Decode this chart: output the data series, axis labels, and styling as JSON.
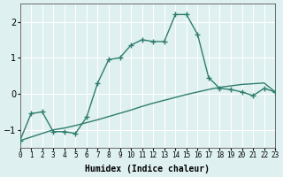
{
  "xlabel": "Humidex (Indice chaleur)",
  "ylabel": "",
  "background_color": "#dff0f0",
  "grid_color": "#ffffff",
  "line_color": "#2e7d6e",
  "xlim": [
    0,
    23
  ],
  "ylim": [
    -1.5,
    2.5
  ],
  "yticks": [
    -1,
    0,
    1,
    2
  ],
  "xtick_labels": [
    "0",
    "1",
    "2",
    "3",
    "4",
    "5",
    "6",
    "7",
    "8",
    "9",
    "10",
    "11",
    "12",
    "13",
    "14",
    "15",
    "16",
    "17",
    "18",
    "19",
    "20",
    "21",
    "22",
    "23"
  ],
  "series1_x": [
    0,
    1,
    2,
    3,
    4,
    5,
    6,
    7,
    8,
    9,
    10,
    11,
    12,
    13,
    14,
    15,
    16,
    17,
    18,
    19,
    20,
    21,
    22,
    23
  ],
  "series1_y": [
    -1.3,
    -0.55,
    -0.5,
    -1.05,
    -1.05,
    -1.1,
    -0.65,
    0.3,
    0.95,
    1.0,
    1.35,
    1.5,
    1.45,
    1.45,
    2.2,
    2.2,
    1.65,
    0.45,
    0.15,
    0.12,
    0.05,
    -0.05,
    0.15,
    0.05
  ],
  "series2_x": [
    0,
    1,
    2,
    3,
    4,
    5,
    6,
    7,
    8,
    9,
    10,
    11,
    12,
    13,
    14,
    15,
    16,
    17,
    18,
    19,
    20,
    21,
    22,
    23
  ],
  "series2_y": [
    -1.3,
    -1.2,
    -1.1,
    -1.0,
    -0.95,
    -0.88,
    -0.8,
    -0.72,
    -0.63,
    -0.54,
    -0.45,
    -0.35,
    -0.26,
    -0.18,
    -0.1,
    -0.02,
    0.05,
    0.12,
    0.18,
    0.22,
    0.26,
    0.28,
    0.3,
    0.05
  ]
}
